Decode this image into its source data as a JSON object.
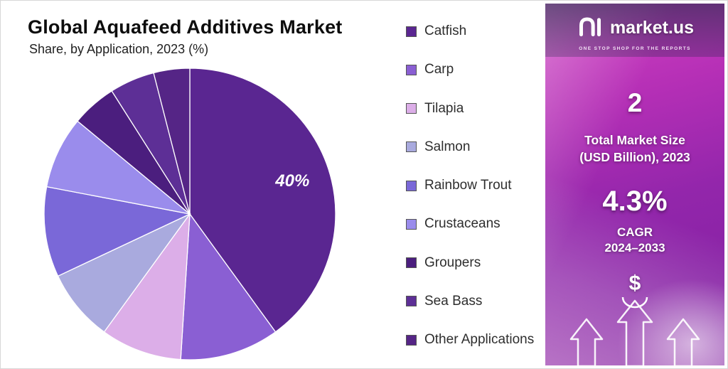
{
  "chart": {
    "title": "Global Aquafeed Additives Market",
    "subtitle": "Share, by Application, 2023 (%)"
  },
  "chart_data": {
    "type": "pie",
    "title": "Global Aquafeed Additives Market Share, by Application, 2023 (%)",
    "unit": "%",
    "labels": [
      "Catfish",
      "Carp",
      "Tilapia",
      "Salmon",
      "Rainbow Trout",
      "Crustaceans",
      "Groupers",
      "Sea Bass",
      "Other Applications"
    ],
    "values": [
      40,
      11,
      9,
      8,
      10,
      8,
      5,
      5,
      4
    ],
    "colors": [
      "#5a2691",
      "#8a5fd3",
      "#dcaee8",
      "#a9aade",
      "#7a68d8",
      "#9a8cec",
      "#4b1e7e",
      "#5d2f96",
      "#552586"
    ],
    "data_label": {
      "slice": "Catfish",
      "text": "40%"
    },
    "legend_position": "right",
    "start_angle_deg": 0,
    "direction": "clockwise",
    "slice_border_color": "#ffffff"
  },
  "side_panel": {
    "brand": {
      "name": "market.us",
      "tagline": "ONE STOP SHOP FOR THE REPORTS"
    },
    "market_size": {
      "value": "2",
      "label_line1": "Total Market Size",
      "label_line2": "(USD Billion), 2023"
    },
    "cagr": {
      "value": "4.3%",
      "label_line1": "CAGR",
      "label_line2": "2024–2033"
    },
    "currency_symbol": "$"
  }
}
